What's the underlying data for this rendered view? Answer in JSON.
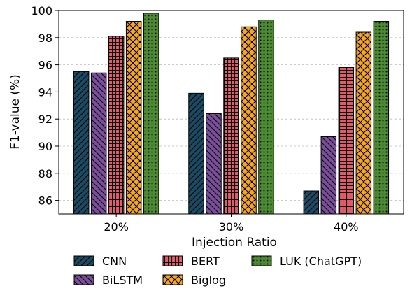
{
  "chart_data": {
    "type": "bar",
    "title": "",
    "xlabel": "Injection Ratio",
    "ylabel": "F1-value (%)",
    "ylim": [
      85,
      100
    ],
    "yticks": [
      86,
      88,
      90,
      92,
      94,
      96,
      98,
      100
    ],
    "grid": "y-dashed",
    "legend_placement": "bottom",
    "categories": [
      "20%",
      "30%",
      "40%"
    ],
    "series": [
      {
        "name": "CNN",
        "values": [
          95.5,
          93.9,
          86.7
        ],
        "color": "#1b4a63",
        "hatch": "diagonal-forward"
      },
      {
        "name": "BiLSTM",
        "values": [
          95.4,
          92.4,
          90.7
        ],
        "color": "#7a4e9a",
        "hatch": "diagonal-back"
      },
      {
        "name": "BERT",
        "values": [
          98.1,
          96.5,
          95.8
        ],
        "color": "#e8596b",
        "hatch": "grid"
      },
      {
        "name": "Biglog",
        "values": [
          99.2,
          98.8,
          98.4
        ],
        "color": "#f5a623",
        "hatch": "cross"
      },
      {
        "name": "LUK (ChatGPT)",
        "values": [
          99.8,
          99.3,
          99.2
        ],
        "color": "#4d8a34",
        "hatch": "dots"
      }
    ]
  }
}
